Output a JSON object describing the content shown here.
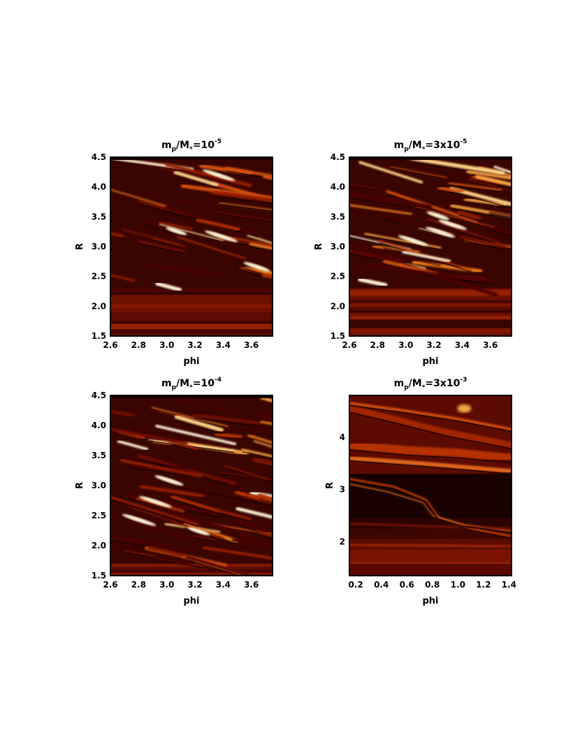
{
  "chart_data": [
    {
      "type": "heatmap",
      "title_parts": {
        "m": "m",
        "p": "p",
        "slash": "/M",
        "star": "*",
        "eq": "=",
        "coef": "",
        "base": "10",
        "exp": "-5"
      },
      "xlabel": "phi",
      "ylabel": "R",
      "xlim": [
        2.6,
        3.75
      ],
      "ylim": [
        1.5,
        4.5
      ],
      "xticks": [
        "2.6",
        "2.8",
        "3.0",
        "3.2",
        "3.4",
        "3.6"
      ],
      "xtick_values": [
        2.6,
        2.8,
        3.0,
        3.2,
        3.4,
        3.6
      ],
      "yticks": [
        "1.5",
        "2.0",
        "2.5",
        "3.0",
        "3.5",
        "4.0",
        "4.5"
      ],
      "ytick_values": [
        1.5,
        2.0,
        2.5,
        3.0,
        3.5,
        4.0,
        4.5
      ],
      "colormap": "red-temperature",
      "field": {
        "turbulent_above_R": 2.3,
        "streak_count": 38,
        "seed": 11
      }
    },
    {
      "type": "heatmap",
      "title_parts": {
        "m": "m",
        "p": "p",
        "slash": "/M",
        "star": "*",
        "eq": "=",
        "coef": "3x",
        "base": "10",
        "exp": "-5"
      },
      "xlabel": "phi",
      "ylabel": "R",
      "xlim": [
        2.6,
        3.75
      ],
      "ylim": [
        1.5,
        4.5
      ],
      "xticks": [
        "2.6",
        "2.8",
        "3.0",
        "3.2",
        "3.4",
        "3.6"
      ],
      "xtick_values": [
        2.6,
        2.8,
        3.0,
        3.2,
        3.4,
        3.6
      ],
      "yticks": [
        "1.5",
        "2.0",
        "2.5",
        "3.0",
        "3.5",
        "4.0",
        "4.5"
      ],
      "ytick_values": [
        1.5,
        2.0,
        2.5,
        3.0,
        3.5,
        4.0,
        4.5
      ],
      "colormap": "red-temperature",
      "field": {
        "turbulent_above_R": 2.3,
        "streak_count": 48,
        "seed": 23
      }
    },
    {
      "type": "heatmap",
      "title_parts": {
        "m": "m",
        "p": "p",
        "slash": "/M",
        "star": "*",
        "eq": "=",
        "coef": "",
        "base": "10",
        "exp": "-4"
      },
      "xlabel": "phi",
      "ylabel": "R",
      "xlim": [
        2.6,
        3.75
      ],
      "ylim": [
        1.5,
        4.5
      ],
      "xticks": [
        "2.6",
        "2.8",
        "3.0",
        "3.2",
        "3.4",
        "3.6"
      ],
      "xtick_values": [
        2.6,
        2.8,
        3.0,
        3.2,
        3.4,
        3.6
      ],
      "yticks": [
        "1.5",
        "2.0",
        "2.5",
        "3.0",
        "3.5",
        "4.0",
        "4.5"
      ],
      "ytick_values": [
        1.5,
        2.0,
        2.5,
        3.0,
        3.5,
        4.0,
        4.5
      ],
      "colormap": "red-temperature",
      "field": {
        "turbulent_above_R": 1.7,
        "streak_count": 60,
        "seed": 37
      }
    },
    {
      "type": "heatmap",
      "title_parts": {
        "m": "m",
        "p": "p",
        "slash": "/M",
        "star": "*",
        "eq": "=",
        "coef": "3x",
        "base": "10",
        "exp": "-3"
      },
      "xlabel": "phi",
      "ylabel": "R",
      "xlim": [
        0.15,
        1.42
      ],
      "ylim": [
        1.35,
        4.8
      ],
      "xticks": [
        "0.2",
        "0.4",
        "0.6",
        "0.8",
        "1.0",
        "1.2",
        "1.4"
      ],
      "xtick_values": [
        0.2,
        0.4,
        0.6,
        0.8,
        1.0,
        1.2,
        1.4
      ],
      "yticks": [
        "2",
        "3",
        "4"
      ],
      "ytick_values": [
        2,
        3,
        4
      ],
      "colormap": "red-temperature",
      "field": {
        "style": "gap",
        "seed": 51
      }
    }
  ]
}
